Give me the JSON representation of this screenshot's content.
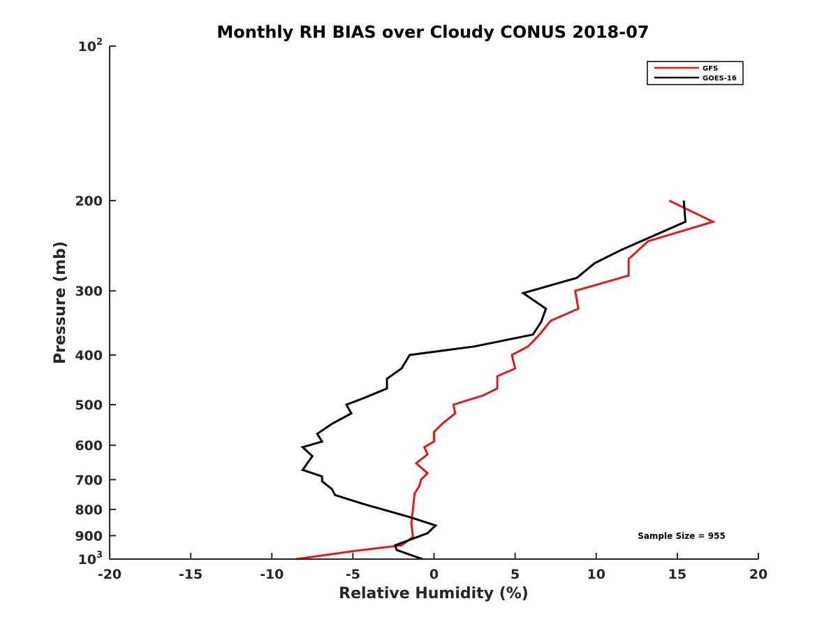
{
  "chart_data": {
    "type": "line",
    "title": "Monthly RH BIAS over Cloudy CONUS  2018-07",
    "xlabel": "Relative Humidity (%)",
    "ylabel": "Pressure (mb)",
    "xlim": [
      -20,
      20
    ],
    "ylim": [
      100,
      1000
    ],
    "yscale": "log",
    "yreverse": true,
    "x_ticks": [
      -20,
      -15,
      -10,
      -5,
      0,
      5,
      10,
      15,
      20
    ],
    "x_tick_labels": [
      "-20",
      "-15",
      "-10",
      "-5",
      "0",
      "5",
      "10",
      "15",
      "20"
    ],
    "y_ticks": [
      100,
      200,
      300,
      400,
      500,
      600,
      700,
      800,
      900,
      1000
    ],
    "y_tick_labels": [
      {
        "base": "10",
        "exp": "2"
      },
      {
        "base": "200"
      },
      {
        "base": "300"
      },
      {
        "base": "400"
      },
      {
        "base": "500"
      },
      {
        "base": "600"
      },
      {
        "base": "700"
      },
      {
        "base": "800"
      },
      {
        "base": "900"
      },
      {
        "base": "10",
        "exp": "3"
      }
    ],
    "legend_position": "top-right",
    "annotation": "Sample Size = 955",
    "series": [
      {
        "name": "GFS",
        "color": "#e31a1c",
        "points": [
          [
            14.5,
            200
          ],
          [
            17.2,
            220
          ],
          [
            13.2,
            240
          ],
          [
            12.0,
            260
          ],
          [
            12.0,
            280
          ],
          [
            8.7,
            300
          ],
          [
            8.9,
            325
          ],
          [
            7.2,
            343
          ],
          [
            6.5,
            365
          ],
          [
            5.8,
            385
          ],
          [
            4.8,
            400
          ],
          [
            5.0,
            425
          ],
          [
            3.9,
            440
          ],
          [
            3.9,
            465
          ],
          [
            3.0,
            480
          ],
          [
            1.2,
            500
          ],
          [
            1.3,
            520
          ],
          [
            0.5,
            545
          ],
          [
            0.0,
            565
          ],
          [
            0.0,
            590
          ],
          [
            -0.6,
            605
          ],
          [
            -0.4,
            625
          ],
          [
            -1.1,
            650
          ],
          [
            -0.4,
            680
          ],
          [
            -0.8,
            700
          ],
          [
            -0.9,
            720
          ],
          [
            -1.2,
            745
          ],
          [
            -1.3,
            800
          ],
          [
            -1.4,
            850
          ],
          [
            -1.3,
            905
          ],
          [
            -2.0,
            940
          ],
          [
            -5.0,
            965
          ],
          [
            -8.5,
            1000
          ]
        ]
      },
      {
        "name": "GOES-16",
        "color": "#000000",
        "points": [
          [
            15.4,
            200
          ],
          [
            15.5,
            220
          ],
          [
            11.5,
            250
          ],
          [
            9.9,
            265
          ],
          [
            8.8,
            283
          ],
          [
            5.5,
            303
          ],
          [
            6.9,
            325
          ],
          [
            6.6,
            345
          ],
          [
            6.1,
            365
          ],
          [
            2.5,
            385
          ],
          [
            -1.5,
            400
          ],
          [
            -2.0,
            425
          ],
          [
            -2.9,
            445
          ],
          [
            -2.9,
            465
          ],
          [
            -4.3,
            485
          ],
          [
            -5.4,
            500
          ],
          [
            -5.1,
            520
          ],
          [
            -6.3,
            545
          ],
          [
            -7.2,
            570
          ],
          [
            -6.9,
            590
          ],
          [
            -8.1,
            605
          ],
          [
            -7.5,
            630
          ],
          [
            -8.1,
            670
          ],
          [
            -6.9,
            690
          ],
          [
            -6.9,
            705
          ],
          [
            -6.3,
            730
          ],
          [
            -6.1,
            750
          ],
          [
            -4.4,
            780
          ],
          [
            -1.4,
            830
          ],
          [
            0.1,
            860
          ],
          [
            -0.4,
            890
          ],
          [
            -2.4,
            940
          ],
          [
            -2.3,
            960
          ],
          [
            -1.5,
            980
          ],
          [
            -0.7,
            1000
          ]
        ]
      }
    ]
  }
}
